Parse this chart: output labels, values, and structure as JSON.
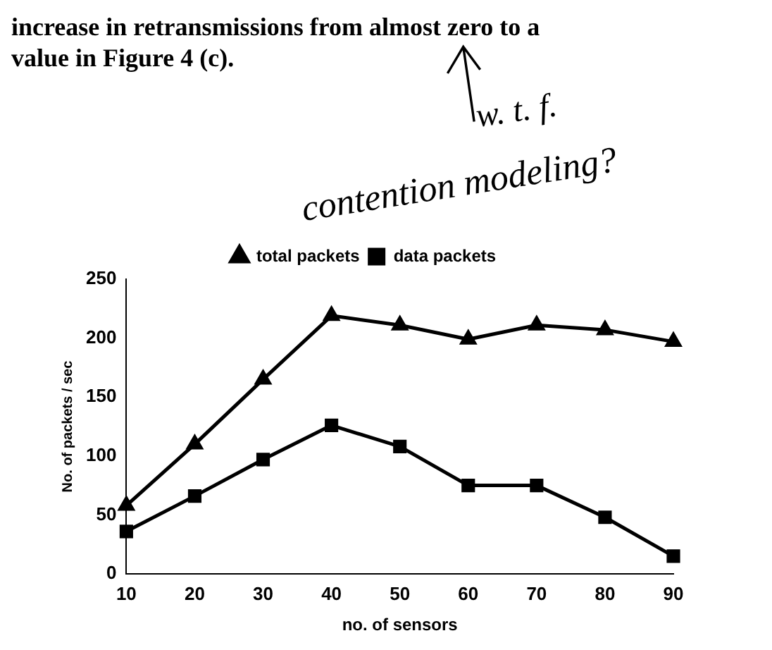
{
  "chart_data": {
    "type": "line",
    "annotations": [
      "increase in retransmissions from almost zero to a",
      "value in Figure 4 (c).",
      "w. t. f.",
      "contention modeling?"
    ],
    "xlabel": "no. of sensors",
    "ylabel": "No. of packets / sec",
    "categories": [
      "10",
      "20",
      "30",
      "40",
      "50",
      "60",
      "70",
      "80",
      "90"
    ],
    "series": [
      {
        "name": "total packets",
        "color": "#000000",
        "marker": "triangle",
        "values": [
          58,
          110,
          165,
          219,
          211,
          199,
          211,
          207,
          197
        ]
      },
      {
        "name": "data packets",
        "color": "#000000",
        "marker": "square",
        "values": [
          36,
          66,
          97,
          126,
          108,
          75,
          75,
          48,
          15
        ]
      }
    ],
    "ylim": [
      0,
      250
    ],
    "yticks": [
      0,
      50,
      100,
      150,
      200,
      250
    ],
    "grid": false,
    "legend": "top",
    "line_style": "solid"
  }
}
